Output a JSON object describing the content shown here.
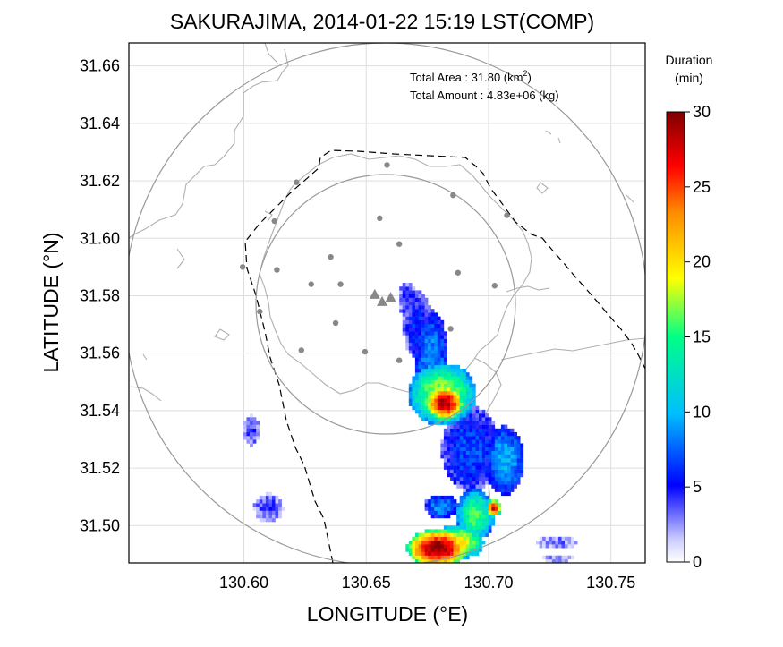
{
  "chart_data": {
    "type": "heatmap",
    "title": "SAKURAJIMA, 2014-01-22 15:19 LST(COMP)",
    "xlabel": "LONGITUDE (°E)",
    "ylabel": "LATITUDE (°N)",
    "xlim": [
      130.553,
      130.764
    ],
    "ylim": [
      31.487,
      31.668
    ],
    "x_ticks": [
      "130.60",
      "130.65",
      "130.70",
      "130.75"
    ],
    "y_ticks": [
      "31.66",
      "31.64",
      "31.62",
      "31.60",
      "31.58",
      "31.56",
      "31.54",
      "31.52",
      "31.50"
    ],
    "grid": true,
    "annotations": {
      "area_prefix": "Total Area   : 31.80 (km",
      "area_exp": "2",
      "area_suffix": ")",
      "amount": "Total Amount : 4.83e+06 (kg)"
    },
    "colorbar": {
      "title_line1": "Duration",
      "title_line2": "(min)",
      "min": 0,
      "max": 30,
      "ticks": [
        "0",
        "5",
        "10",
        "15",
        "20",
        "25",
        "30"
      ],
      "stops": [
        "#ffffff",
        "#0000ff",
        "#00bfff",
        "#00ff88",
        "#ffff00",
        "#ff8800",
        "#ff0000",
        "#800000"
      ]
    },
    "vents": [
      [
        130.6535,
        31.5805
      ],
      [
        130.6565,
        31.578
      ],
      [
        130.66,
        31.5795
      ]
    ],
    "stations": [
      [
        130.6585,
        31.6255
      ],
      [
        130.6215,
        31.6195
      ],
      [
        130.6125,
        31.606
      ],
      [
        130.6555,
        31.607
      ],
      [
        130.6855,
        31.615
      ],
      [
        130.7075,
        31.608
      ],
      [
        130.6635,
        31.598
      ],
      [
        130.5995,
        31.59
      ],
      [
        130.6135,
        31.589
      ],
      [
        130.6275,
        31.584
      ],
      [
        130.6355,
        31.5935
      ],
      [
        130.6395,
        31.584
      ],
      [
        130.6875,
        31.588
      ],
      [
        130.7025,
        31.5835
      ],
      [
        130.6065,
        31.5745
      ],
      [
        130.6375,
        31.5705
      ],
      [
        130.6235,
        31.561
      ],
      [
        130.6495,
        31.5605
      ],
      [
        130.6635,
        31.5575
      ],
      [
        130.6845,
        31.5685
      ]
    ],
    "ash_patches": [
      {
        "x": 130.6815,
        "y": 31.542,
        "rx": 0.0075,
        "ry": 0.006,
        "value": 29
      },
      {
        "x": 130.6805,
        "y": 31.545,
        "rx": 0.014,
        "ry": 0.011,
        "value": 18
      },
      {
        "x": 130.676,
        "y": 31.5565,
        "rx": 0.007,
        "ry": 0.018,
        "value": 9
      },
      {
        "x": 130.6705,
        "y": 31.569,
        "rx": 0.006,
        "ry": 0.012,
        "value": 6
      },
      {
        "x": 130.6665,
        "y": 31.578,
        "rx": 0.004,
        "ry": 0.006,
        "value": 5
      },
      {
        "x": 130.692,
        "y": 31.526,
        "rx": 0.012,
        "ry": 0.015,
        "value": 7
      },
      {
        "x": 130.706,
        "y": 31.522,
        "rx": 0.008,
        "ry": 0.012,
        "value": 10
      },
      {
        "x": 130.694,
        "y": 31.503,
        "rx": 0.008,
        "ry": 0.009,
        "value": 16
      },
      {
        "x": 130.7015,
        "y": 31.5055,
        "rx": 0.003,
        "ry": 0.003,
        "value": 27
      },
      {
        "x": 130.68,
        "y": 31.506,
        "rx": 0.007,
        "ry": 0.004,
        "value": 9
      },
      {
        "x": 130.6865,
        "y": 31.4935,
        "rx": 0.011,
        "ry": 0.006,
        "value": 20
      },
      {
        "x": 130.6785,
        "y": 31.4915,
        "rx": 0.0125,
        "ry": 0.0065,
        "value": 30
      },
      {
        "x": 130.6095,
        "y": 31.5055,
        "rx": 0.006,
        "ry": 0.005,
        "value": 4
      },
      {
        "x": 130.6025,
        "y": 31.5325,
        "rx": 0.0035,
        "ry": 0.0055,
        "value": 4
      },
      {
        "x": 130.7275,
        "y": 31.4935,
        "rx": 0.0085,
        "ry": 0.0025,
        "value": 3
      },
      {
        "x": 130.7275,
        "y": 31.488,
        "rx": 0.0065,
        "ry": 0.0015,
        "value": 3
      }
    ]
  }
}
